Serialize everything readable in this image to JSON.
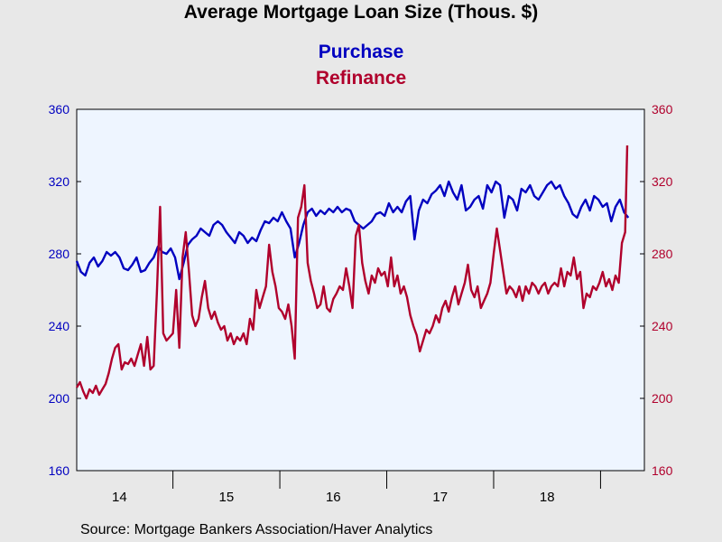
{
  "colors": {
    "purchase": "#0000c0",
    "refinance": "#b0002c",
    "plot_bg": "#eef5ff",
    "page_bg": "#e8e8e8"
  },
  "source_text": "Source:  Mortgage Bankers Association/Haver Analytics",
  "chart_data": {
    "type": "line",
    "title": "Average Mortgage Loan Size (Thous. $)",
    "x_unit": "year (20xx)",
    "x_range": [
      13.6,
      18.91
    ],
    "x_ticks": [
      14,
      15,
      16,
      17,
      18
    ],
    "left_axis": {
      "ylim": [
        160,
        360
      ],
      "ticks": [
        160,
        200,
        240,
        280,
        320,
        360
      ],
      "color": "#0000c0"
    },
    "right_axis": {
      "ylim": [
        160,
        360
      ],
      "ticks": [
        160,
        200,
        240,
        280,
        320,
        360
      ],
      "color": "#b0002c"
    },
    "legend": "top-center",
    "grid": false,
    "series": [
      {
        "name": "Purchase",
        "axis": "left",
        "color": "#0000c0",
        "points": [
          [
            13.6,
            276
          ],
          [
            13.64,
            270
          ],
          [
            13.68,
            268
          ],
          [
            13.72,
            275
          ],
          [
            13.76,
            278
          ],
          [
            13.8,
            273
          ],
          [
            13.84,
            276
          ],
          [
            13.88,
            281
          ],
          [
            13.92,
            279
          ],
          [
            13.96,
            281
          ],
          [
            14.0,
            278
          ],
          [
            14.04,
            272
          ],
          [
            14.08,
            271
          ],
          [
            14.12,
            274
          ],
          [
            14.16,
            278
          ],
          [
            14.2,
            270
          ],
          [
            14.24,
            271
          ],
          [
            14.28,
            275
          ],
          [
            14.32,
            278
          ],
          [
            14.36,
            284
          ],
          [
            14.4,
            281
          ],
          [
            14.44,
            280
          ],
          [
            14.48,
            283
          ],
          [
            14.52,
            278
          ],
          [
            14.56,
            266
          ],
          [
            14.6,
            275
          ],
          [
            14.64,
            285
          ],
          [
            14.68,
            288
          ],
          [
            14.72,
            290
          ],
          [
            14.76,
            294
          ],
          [
            14.8,
            292
          ],
          [
            14.84,
            290
          ],
          [
            14.88,
            296
          ],
          [
            14.92,
            298
          ],
          [
            14.96,
            296
          ],
          [
            15.0,
            292
          ],
          [
            15.04,
            289
          ],
          [
            15.08,
            286
          ],
          [
            15.12,
            292
          ],
          [
            15.16,
            290
          ],
          [
            15.2,
            286
          ],
          [
            15.24,
            289
          ],
          [
            15.28,
            287
          ],
          [
            15.32,
            293
          ],
          [
            15.36,
            298
          ],
          [
            15.4,
            297
          ],
          [
            15.44,
            300
          ],
          [
            15.48,
            298
          ],
          [
            15.52,
            303
          ],
          [
            15.56,
            298
          ],
          [
            15.6,
            294
          ],
          [
            15.64,
            278
          ],
          [
            15.68,
            286
          ],
          [
            15.72,
            296
          ],
          [
            15.76,
            303
          ],
          [
            15.8,
            305
          ],
          [
            15.84,
            301
          ],
          [
            15.88,
            304
          ],
          [
            15.92,
            302
          ],
          [
            15.96,
            305
          ],
          [
            16.0,
            303
          ],
          [
            16.04,
            306
          ],
          [
            16.08,
            303
          ],
          [
            16.12,
            305
          ],
          [
            16.16,
            304
          ],
          [
            16.2,
            298
          ],
          [
            16.24,
            296
          ],
          [
            16.28,
            294
          ],
          [
            16.32,
            296
          ],
          [
            16.36,
            298
          ],
          [
            16.4,
            302
          ],
          [
            16.44,
            303
          ],
          [
            16.48,
            301
          ],
          [
            16.52,
            308
          ],
          [
            16.56,
            303
          ],
          [
            16.6,
            306
          ],
          [
            16.64,
            303
          ],
          [
            16.68,
            309
          ],
          [
            16.72,
            312
          ],
          [
            16.76,
            288
          ],
          [
            16.8,
            304
          ],
          [
            16.84,
            310
          ],
          [
            16.88,
            308
          ],
          [
            16.92,
            313
          ],
          [
            16.96,
            315
          ],
          [
            17.0,
            318
          ],
          [
            17.04,
            312
          ],
          [
            17.08,
            320
          ],
          [
            17.12,
            314
          ],
          [
            17.16,
            310
          ],
          [
            17.2,
            318
          ],
          [
            17.24,
            304
          ],
          [
            17.28,
            306
          ],
          [
            17.32,
            310
          ],
          [
            17.36,
            312
          ],
          [
            17.4,
            305
          ],
          [
            17.44,
            318
          ],
          [
            17.48,
            314
          ],
          [
            17.52,
            320
          ],
          [
            17.56,
            318
          ],
          [
            17.6,
            300
          ],
          [
            17.64,
            312
          ],
          [
            17.68,
            310
          ],
          [
            17.72,
            304
          ],
          [
            17.76,
            316
          ],
          [
            17.8,
            314
          ],
          [
            17.84,
            318
          ],
          [
            17.88,
            312
          ],
          [
            17.92,
            310
          ],
          [
            17.96,
            314
          ],
          [
            18.0,
            318
          ],
          [
            18.04,
            320
          ],
          [
            18.08,
            316
          ],
          [
            18.12,
            318
          ],
          [
            18.16,
            312
          ],
          [
            18.2,
            308
          ],
          [
            18.24,
            302
          ],
          [
            18.28,
            300
          ],
          [
            18.32,
            306
          ],
          [
            18.36,
            310
          ],
          [
            18.4,
            304
          ],
          [
            18.44,
            312
          ],
          [
            18.48,
            310
          ],
          [
            18.52,
            306
          ],
          [
            18.56,
            308
          ],
          [
            18.6,
            298
          ],
          [
            18.64,
            306
          ],
          [
            18.68,
            310
          ],
          [
            18.72,
            303
          ],
          [
            18.76,
            300
          ]
        ]
      },
      {
        "name": "Refinance",
        "axis": "right",
        "color": "#b0002c",
        "points": [
          [
            13.6,
            206
          ],
          [
            13.63,
            209
          ],
          [
            13.66,
            204
          ],
          [
            13.69,
            200
          ],
          [
            13.72,
            205
          ],
          [
            13.75,
            203
          ],
          [
            13.78,
            207
          ],
          [
            13.81,
            202
          ],
          [
            13.84,
            205
          ],
          [
            13.87,
            208
          ],
          [
            13.9,
            214
          ],
          [
            13.93,
            222
          ],
          [
            13.96,
            228
          ],
          [
            13.99,
            230
          ],
          [
            14.02,
            216
          ],
          [
            14.05,
            220
          ],
          [
            14.08,
            219
          ],
          [
            14.11,
            222
          ],
          [
            14.14,
            218
          ],
          [
            14.17,
            224
          ],
          [
            14.2,
            230
          ],
          [
            14.23,
            218
          ],
          [
            14.26,
            234
          ],
          [
            14.29,
            216
          ],
          [
            14.32,
            218
          ],
          [
            14.35,
            258
          ],
          [
            14.38,
            306
          ],
          [
            14.41,
            236
          ],
          [
            14.44,
            232
          ],
          [
            14.47,
            234
          ],
          [
            14.5,
            236
          ],
          [
            14.53,
            260
          ],
          [
            14.56,
            228
          ],
          [
            14.59,
            278
          ],
          [
            14.62,
            292
          ],
          [
            14.65,
            270
          ],
          [
            14.68,
            246
          ],
          [
            14.71,
            240
          ],
          [
            14.74,
            244
          ],
          [
            14.77,
            256
          ],
          [
            14.8,
            265
          ],
          [
            14.83,
            250
          ],
          [
            14.86,
            244
          ],
          [
            14.89,
            248
          ],
          [
            14.92,
            242
          ],
          [
            14.95,
            238
          ],
          [
            14.98,
            240
          ],
          [
            15.01,
            232
          ],
          [
            15.04,
            236
          ],
          [
            15.07,
            230
          ],
          [
            15.1,
            234
          ],
          [
            15.13,
            232
          ],
          [
            15.16,
            236
          ],
          [
            15.19,
            230
          ],
          [
            15.22,
            244
          ],
          [
            15.25,
            238
          ],
          [
            15.28,
            260
          ],
          [
            15.31,
            250
          ],
          [
            15.34,
            256
          ],
          [
            15.37,
            262
          ],
          [
            15.4,
            285
          ],
          [
            15.43,
            270
          ],
          [
            15.46,
            262
          ],
          [
            15.49,
            250
          ],
          [
            15.52,
            248
          ],
          [
            15.55,
            244
          ],
          [
            15.58,
            252
          ],
          [
            15.61,
            240
          ],
          [
            15.64,
            222
          ],
          [
            15.67,
            300
          ],
          [
            15.7,
            306
          ],
          [
            15.73,
            318
          ],
          [
            15.76,
            275
          ],
          [
            15.79,
            265
          ],
          [
            15.82,
            258
          ],
          [
            15.85,
            250
          ],
          [
            15.88,
            252
          ],
          [
            15.91,
            262
          ],
          [
            15.94,
            250
          ],
          [
            15.97,
            248
          ],
          [
            16.0,
            255
          ],
          [
            16.03,
            258
          ],
          [
            16.06,
            262
          ],
          [
            16.09,
            260
          ],
          [
            16.12,
            272
          ],
          [
            16.15,
            262
          ],
          [
            16.18,
            250
          ],
          [
            16.21,
            290
          ],
          [
            16.24,
            296
          ],
          [
            16.27,
            275
          ],
          [
            16.3,
            265
          ],
          [
            16.33,
            258
          ],
          [
            16.36,
            268
          ],
          [
            16.39,
            264
          ],
          [
            16.42,
            272
          ],
          [
            16.45,
            268
          ],
          [
            16.48,
            270
          ],
          [
            16.51,
            262
          ],
          [
            16.54,
            278
          ],
          [
            16.57,
            262
          ],
          [
            16.6,
            268
          ],
          [
            16.63,
            258
          ],
          [
            16.66,
            262
          ],
          [
            16.69,
            256
          ],
          [
            16.72,
            246
          ],
          [
            16.75,
            240
          ],
          [
            16.78,
            235
          ],
          [
            16.81,
            226
          ],
          [
            16.84,
            232
          ],
          [
            16.87,
            238
          ],
          [
            16.9,
            236
          ],
          [
            16.93,
            240
          ],
          [
            16.96,
            246
          ],
          [
            16.99,
            242
          ],
          [
            17.02,
            250
          ],
          [
            17.05,
            254
          ],
          [
            17.08,
            248
          ],
          [
            17.11,
            256
          ],
          [
            17.14,
            262
          ],
          [
            17.17,
            252
          ],
          [
            17.2,
            258
          ],
          [
            17.23,
            264
          ],
          [
            17.26,
            274
          ],
          [
            17.29,
            260
          ],
          [
            17.32,
            256
          ],
          [
            17.35,
            262
          ],
          [
            17.38,
            250
          ],
          [
            17.41,
            254
          ],
          [
            17.44,
            258
          ],
          [
            17.47,
            264
          ],
          [
            17.5,
            280
          ],
          [
            17.53,
            294
          ],
          [
            17.56,
            282
          ],
          [
            17.59,
            270
          ],
          [
            17.62,
            258
          ],
          [
            17.65,
            262
          ],
          [
            17.68,
            260
          ],
          [
            17.71,
            256
          ],
          [
            17.74,
            262
          ],
          [
            17.77,
            254
          ],
          [
            17.8,
            262
          ],
          [
            17.83,
            258
          ],
          [
            17.86,
            264
          ],
          [
            17.89,
            262
          ],
          [
            17.92,
            258
          ],
          [
            17.95,
            262
          ],
          [
            17.98,
            264
          ],
          [
            18.01,
            258
          ],
          [
            18.04,
            262
          ],
          [
            18.07,
            264
          ],
          [
            18.1,
            262
          ],
          [
            18.13,
            272
          ],
          [
            18.16,
            262
          ],
          [
            18.19,
            270
          ],
          [
            18.22,
            268
          ],
          [
            18.25,
            278
          ],
          [
            18.28,
            266
          ],
          [
            18.31,
            270
          ],
          [
            18.34,
            250
          ],
          [
            18.37,
            258
          ],
          [
            18.4,
            256
          ],
          [
            18.43,
            262
          ],
          [
            18.46,
            260
          ],
          [
            18.49,
            264
          ],
          [
            18.52,
            270
          ],
          [
            18.55,
            262
          ],
          [
            18.58,
            266
          ],
          [
            18.61,
            260
          ],
          [
            18.64,
            268
          ],
          [
            18.67,
            264
          ],
          [
            18.7,
            286
          ],
          [
            18.73,
            292
          ],
          [
            18.75,
            340
          ]
        ]
      }
    ]
  }
}
